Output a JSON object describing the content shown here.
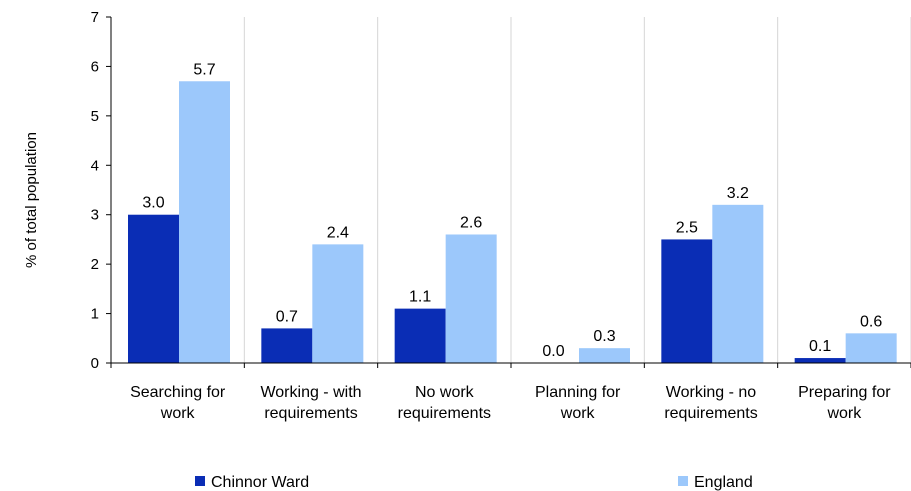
{
  "chart_data": {
    "type": "bar",
    "title": "",
    "xlabel": "",
    "ylabel": "% of total population",
    "ylim": [
      0,
      7
    ],
    "yticks": [
      0,
      1,
      2,
      3,
      4,
      5,
      6,
      7
    ],
    "grid": "vertical separators between categories",
    "legend_position": "bottom",
    "categories": [
      [
        "Searching for",
        "work"
      ],
      [
        "Working - with",
        "requirements"
      ],
      [
        "No work",
        "requirements"
      ],
      [
        "Planning for",
        "work"
      ],
      [
        "Working - no",
        "requirements"
      ],
      [
        "Preparing for",
        "work"
      ]
    ],
    "series": [
      {
        "name": "Chinnor Ward",
        "color": "#0a2db5",
        "values": [
          3.0,
          0.7,
          1.1,
          0.0,
          2.5,
          0.1
        ],
        "labels": [
          "3.0",
          "0.7",
          "1.1",
          "0.0",
          "2.5",
          "0.1"
        ]
      },
      {
        "name": "England",
        "color": "#9cc8fb",
        "values": [
          5.7,
          2.4,
          2.6,
          0.3,
          3.2,
          0.6
        ],
        "labels": [
          "5.7",
          "2.4",
          "2.6",
          "0.3",
          "3.2",
          "0.6"
        ]
      }
    ]
  }
}
